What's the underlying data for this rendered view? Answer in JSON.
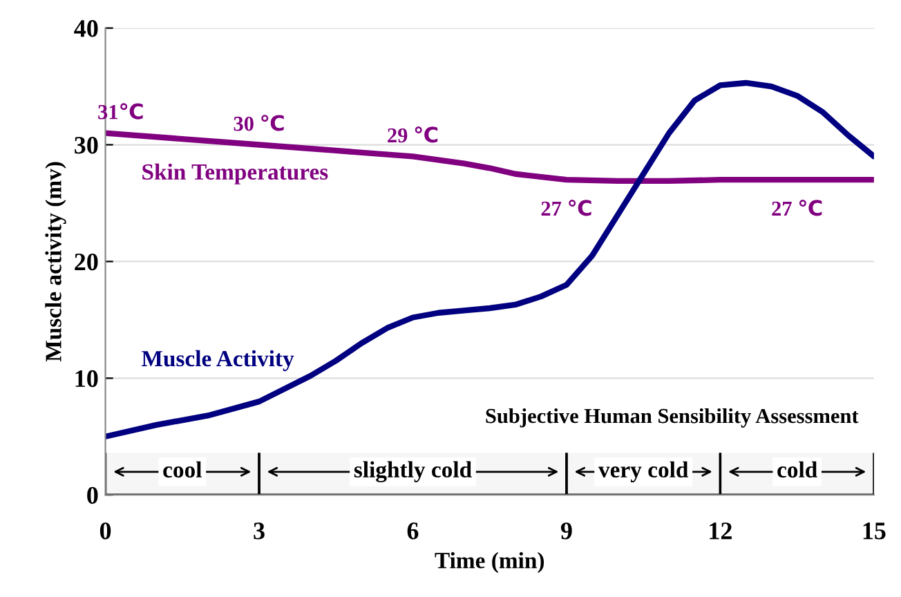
{
  "chart_data": {
    "type": "line",
    "xlabel": "Time (min)",
    "ylabel": "Muscle activity (mv)",
    "xlim": [
      0,
      15
    ],
    "xticks": [
      0,
      3,
      6,
      9,
      12,
      15
    ],
    "ylim": [
      0,
      40
    ],
    "yticks": [
      0,
      10,
      20,
      30,
      40
    ],
    "grid": "y",
    "legend": false,
    "series": [
      {
        "name": "Skin Temperatures",
        "color": "#800080",
        "x": [
          0,
          1.5,
          3,
          4.5,
          6,
          7,
          7.5,
          8,
          9,
          10,
          11,
          12,
          13,
          14,
          15
        ],
        "values": [
          31,
          30.5,
          30,
          29.5,
          29,
          28.4,
          28,
          27.5,
          27,
          26.9,
          26.9,
          27,
          27,
          27,
          27
        ]
      },
      {
        "name": "Muscle Activity",
        "color": "#000080",
        "x": [
          0,
          1,
          2,
          3,
          4,
          4.5,
          5,
          5.5,
          6,
          6.5,
          7,
          7.5,
          8,
          8.5,
          9,
          9.5,
          10,
          10.5,
          11,
          11.5,
          12,
          12.5,
          13,
          13.5,
          14,
          14.5,
          15
        ],
        "values": [
          5,
          6,
          6.8,
          8,
          10.2,
          11.5,
          13,
          14.3,
          15.2,
          15.6,
          15.8,
          16,
          16.3,
          17,
          18,
          20.5,
          24,
          27.5,
          31,
          33.8,
          35.1,
          35.3,
          35,
          34.2,
          32.8,
          30.8,
          29
        ]
      }
    ],
    "annotations": [
      {
        "text": "31℃",
        "x": 0,
        "y": 31
      },
      {
        "text": "30 ℃",
        "x": 3,
        "y": 30
      },
      {
        "text": "29 ℃",
        "x": 6,
        "y": 29
      },
      {
        "text": "27 ℃",
        "x": 9,
        "y": 27
      },
      {
        "text": "27 ℃",
        "x": 13.5,
        "y": 27
      },
      "Subjective Human Sensibility Assessment"
    ],
    "bands": [
      {
        "axis": "x",
        "from": 0,
        "to": 3,
        "label": "cool"
      },
      {
        "axis": "x",
        "from": 3,
        "to": 9,
        "label": "slightly cold"
      },
      {
        "axis": "x",
        "from": 9,
        "to": 12,
        "label": "very cold"
      },
      {
        "axis": "x",
        "from": 12,
        "to": 15,
        "label": "cold"
      }
    ]
  }
}
